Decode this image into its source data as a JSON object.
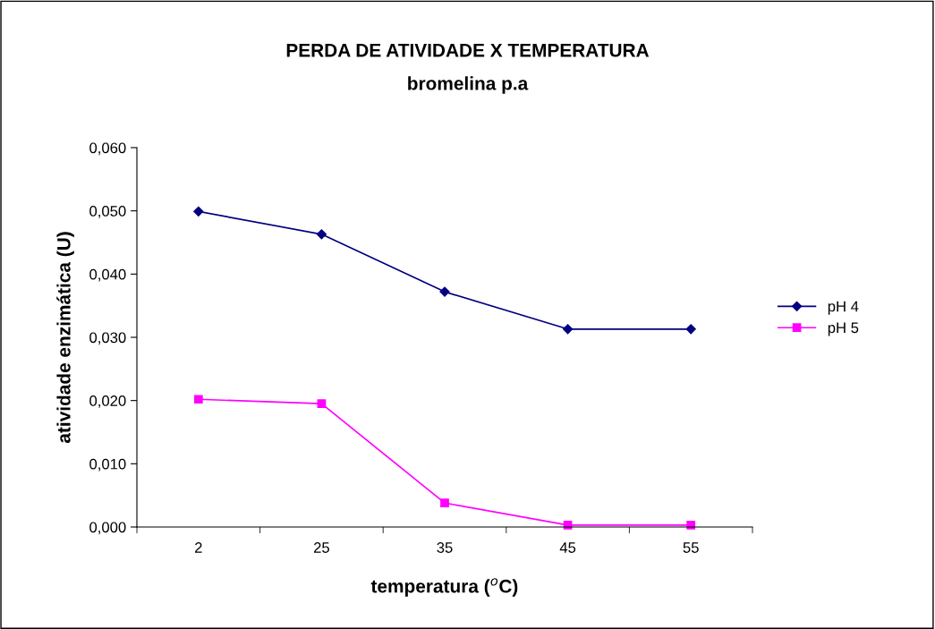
{
  "chart_data": {
    "type": "line",
    "title": "PERDA DE ATIVIDADE X TEMPERATURA",
    "subtitle": "bromelina p.a",
    "xlabel": "temperatura ($^{o}$C)",
    "ylabel": "atividade enzimática (U)",
    "categories": [
      "2",
      "25",
      "35",
      "45",
      "55"
    ],
    "series": [
      {
        "name": "pH 4",
        "color": "#000080",
        "marker": "diamond",
        "values": [
          0.0499,
          0.0463,
          0.0372,
          0.0313,
          0.0313
        ]
      },
      {
        "name": "pH 5",
        "color": "#ff00ff",
        "marker": "square",
        "values": [
          0.0202,
          0.0195,
          0.0038,
          0.0003,
          0.0003
        ]
      }
    ],
    "ylim": [
      0,
      0.06
    ],
    "yticks": [
      {
        "value": 0,
        "label": "0,000"
      },
      {
        "value": 0.01,
        "label": "0,010"
      },
      {
        "value": 0.02,
        "label": "0,020"
      },
      {
        "value": 0.03,
        "label": "0,030"
      },
      {
        "value": 0.04,
        "label": "0,040"
      },
      {
        "value": 0.05,
        "label": "0,050"
      },
      {
        "value": 0.06,
        "label": "0,060"
      }
    ],
    "grid": false,
    "legend": "right",
    "line_style": "solid"
  }
}
